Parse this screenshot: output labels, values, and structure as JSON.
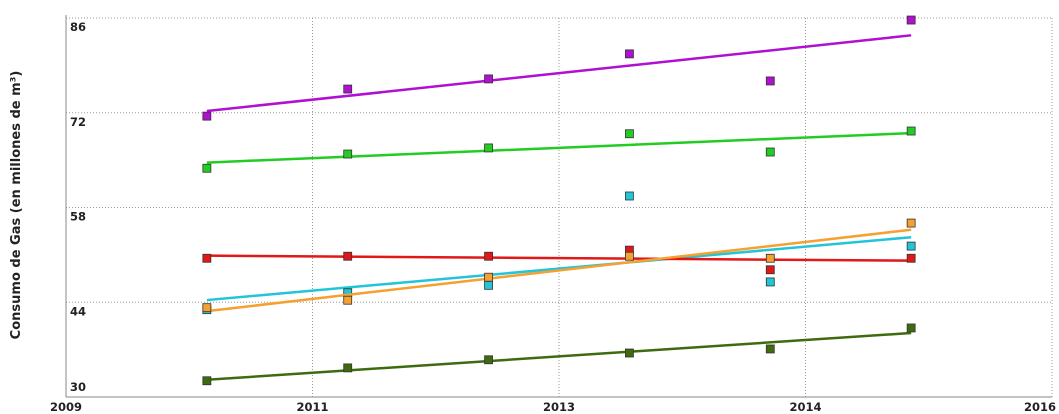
{
  "chart_data": {
    "type": "scatter",
    "y_label": "Consumo de Gas (en millones de m³)",
    "x": [
      2010,
      2011,
      2012,
      2013,
      2014,
      2015
    ],
    "xlim": [
      2009,
      2016
    ],
    "xticks": [
      2009,
      {
        "value": 2010.75,
        "label": "2011"
      },
      {
        "value": 2012.5,
        "label": "2013"
      },
      {
        "value": 2014.25,
        "label": "2014"
      },
      2016
    ],
    "ylim": [
      30,
      86
    ],
    "yticks": [
      30,
      44,
      58,
      72,
      86
    ],
    "grid": true,
    "trendline": true,
    "series": [
      {
        "color": "#b010d0",
        "values": [
          71.5,
          75.5,
          77.0,
          80.7,
          76.7,
          85.7
        ]
      },
      {
        "color": "#22cc22",
        "values": [
          63.8,
          65.9,
          66.8,
          68.9,
          66.2,
          69.3
        ]
      },
      {
        "color": "#22c4d8",
        "values": [
          42.9,
          45.4,
          46.5,
          59.7,
          47.0,
          52.3
        ]
      },
      {
        "color": "#e01818",
        "values": [
          50.5,
          50.8,
          50.8,
          51.7,
          48.8,
          50.5
        ]
      },
      {
        "color": "#f5a030",
        "values": [
          43.2,
          44.3,
          47.7,
          50.8,
          50.5,
          55.7
        ]
      },
      {
        "color": "#3f6a10",
        "values": [
          32.4,
          34.3,
          35.5,
          36.5,
          37.1,
          40.2
        ]
      }
    ]
  }
}
